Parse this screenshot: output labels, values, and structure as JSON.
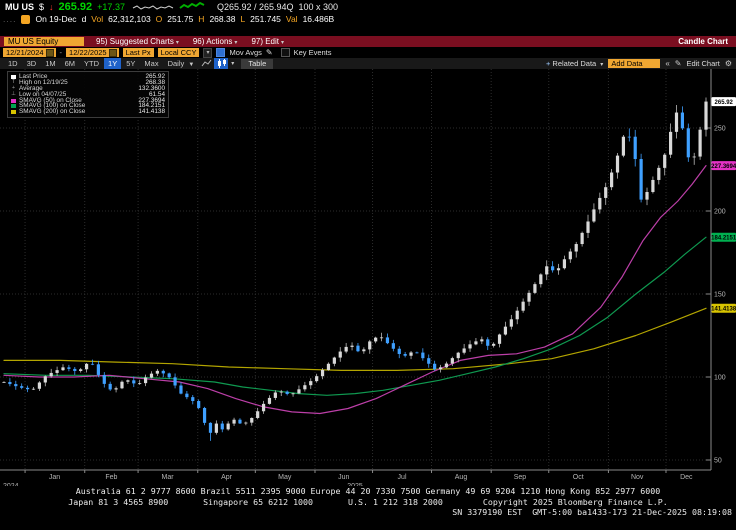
{
  "quote_bar": {
    "ticker": "MU US",
    "currency": "$",
    "arrow": "↓",
    "last": "265.92",
    "change": "+17.37",
    "bid_ask": "Q265.92 / 265.94Q",
    "lot": "100 x 300"
  },
  "ohlc_bar": {
    "prefix": "....",
    "as_of": "On 19-Dec",
    "delay": "d",
    "fields": [
      {
        "label": "Vol",
        "value": "62,312,103"
      },
      {
        "label": "O",
        "value": "251.75"
      },
      {
        "label": "H",
        "value": "268.38"
      },
      {
        "label": "L",
        "value": "251.745"
      },
      {
        "label": "Val",
        "value": "16.486B"
      }
    ]
  },
  "menu_bar": {
    "ticker_box": "MU US Equity",
    "items": [
      "95) Suggested Charts",
      "96) Actions",
      "97) Edit"
    ],
    "right_label": "Candle Chart"
  },
  "settings_bar": {
    "date_from": "12/21/2024",
    "date_sep": "-",
    "date_to": "12/22/2025",
    "price_field": "Last Px",
    "currency_field": "Local CCY",
    "mov_avgs": {
      "checked": true,
      "label": "Mov Avgs"
    },
    "key_events": {
      "checked": false,
      "label": "Key Events"
    }
  },
  "toolbar": {
    "periods": [
      "1D",
      "3D",
      "1M",
      "6M",
      "YTD",
      "1Y",
      "5Y",
      "Max"
    ],
    "active_period": "1Y",
    "frequency": "Daily",
    "table_label": "Table",
    "related_data_label": "Related Data",
    "add_data_label": "Add Data",
    "edit_chart_label": "Edit Chart"
  },
  "legend": {
    "rows": [
      {
        "swatch": "#ffffff",
        "label": "Last Price",
        "value": "265.92"
      },
      {
        "marker": "T",
        "label": "High on 12/19/25",
        "value": "268.38"
      },
      {
        "marker": "+",
        "label": "Average",
        "value": "132.3600"
      },
      {
        "marker": "⊥",
        "label": "Low on 04/07/25",
        "value": "61.54"
      },
      {
        "swatch": "#e332c4",
        "label": "SMAVG (50) on Close",
        "value": "227.3694"
      },
      {
        "swatch": "#00a550",
        "label": "SMAVG (100) on Close",
        "value": "184.2151"
      },
      {
        "swatch": "#d8c400",
        "label": "SMAVG (200) on Close",
        "value": "141.4138"
      }
    ]
  },
  "chart_data": {
    "type": "candlestick",
    "x_range": [
      "12/21/2024",
      "12/22/2025"
    ],
    "y_ticks": [
      50,
      100,
      150,
      200,
      250
    ],
    "month_labels": [
      "Jan",
      "Feb",
      "Mar",
      "Apr",
      "May",
      "Jun",
      "Jul",
      "Aug",
      "Sep",
      "Oct",
      "Nov",
      "Dec"
    ],
    "year_labels": [
      "2024",
      "2025"
    ],
    "last_price": 265.92,
    "high": {
      "date": "12/19/25",
      "value": 268.38
    },
    "low": {
      "date": "04/07/25",
      "value": 61.54
    },
    "average": 132.36,
    "close_path": [
      [
        0.0,
        97
      ],
      [
        0.02,
        94
      ],
      [
        0.04,
        92
      ],
      [
        0.06,
        101
      ],
      [
        0.085,
        106
      ],
      [
        0.105,
        103
      ],
      [
        0.123,
        110
      ],
      [
        0.14,
        97
      ],
      [
        0.155,
        91
      ],
      [
        0.172,
        99
      ],
      [
        0.19,
        95
      ],
      [
        0.205,
        101
      ],
      [
        0.22,
        104
      ],
      [
        0.235,
        100
      ],
      [
        0.252,
        90
      ],
      [
        0.268,
        86
      ],
      [
        0.28,
        80
      ],
      [
        0.292,
        64
      ],
      [
        0.3,
        73
      ],
      [
        0.312,
        68
      ],
      [
        0.325,
        75
      ],
      [
        0.34,
        71
      ],
      [
        0.355,
        76
      ],
      [
        0.372,
        85
      ],
      [
        0.39,
        92
      ],
      [
        0.408,
        89
      ],
      [
        0.425,
        94
      ],
      [
        0.442,
        99
      ],
      [
        0.46,
        107
      ],
      [
        0.478,
        115
      ],
      [
        0.493,
        120
      ],
      [
        0.508,
        114
      ],
      [
        0.522,
        122
      ],
      [
        0.535,
        125
      ],
      [
        0.552,
        118
      ],
      [
        0.568,
        112
      ],
      [
        0.585,
        116
      ],
      [
        0.6,
        110
      ],
      [
        0.615,
        104
      ],
      [
        0.63,
        108
      ],
      [
        0.648,
        115
      ],
      [
        0.665,
        120
      ],
      [
        0.68,
        123
      ],
      [
        0.693,
        117
      ],
      [
        0.708,
        127
      ],
      [
        0.725,
        136
      ],
      [
        0.742,
        147
      ],
      [
        0.758,
        157
      ],
      [
        0.772,
        167
      ],
      [
        0.786,
        163
      ],
      [
        0.8,
        172
      ],
      [
        0.815,
        180
      ],
      [
        0.83,
        192
      ],
      [
        0.845,
        205
      ],
      [
        0.858,
        215
      ],
      [
        0.87,
        228
      ],
      [
        0.884,
        247
      ],
      [
        0.896,
        243
      ],
      [
        0.906,
        206
      ],
      [
        0.917,
        212
      ],
      [
        0.928,
        222
      ],
      [
        0.94,
        232
      ],
      [
        0.951,
        250
      ],
      [
        0.96,
        262
      ],
      [
        0.971,
        241
      ],
      [
        0.978,
        225
      ],
      [
        0.986,
        237
      ],
      [
        0.993,
        252
      ],
      [
        1.0,
        265.92
      ]
    ],
    "series": [
      {
        "name": "SMAVG (200) on Close",
        "color": "#b3a500",
        "badge": "141.4138",
        "points": [
          [
            0,
            110
          ],
          [
            0.08,
            110
          ],
          [
            0.16,
            109
          ],
          [
            0.24,
            108
          ],
          [
            0.32,
            106
          ],
          [
            0.4,
            105
          ],
          [
            0.48,
            104
          ],
          [
            0.56,
            104
          ],
          [
            0.64,
            105
          ],
          [
            0.72,
            108
          ],
          [
            0.78,
            111
          ],
          [
            0.84,
            117
          ],
          [
            0.9,
            125
          ],
          [
            0.95,
            133
          ],
          [
            1,
            141.41
          ]
        ]
      },
      {
        "name": "SMAVG (100) on Close",
        "color": "#0f9950",
        "badge": "184.2151",
        "points": [
          [
            0,
            102
          ],
          [
            0.06,
            101
          ],
          [
            0.12,
            101
          ],
          [
            0.18,
            100
          ],
          [
            0.24,
            99
          ],
          [
            0.3,
            97
          ],
          [
            0.34,
            94
          ],
          [
            0.38,
            92
          ],
          [
            0.42,
            90
          ],
          [
            0.46,
            89
          ],
          [
            0.5,
            90
          ],
          [
            0.54,
            92
          ],
          [
            0.58,
            95
          ],
          [
            0.62,
            98
          ],
          [
            0.66,
            102
          ],
          [
            0.7,
            106
          ],
          [
            0.74,
            111
          ],
          [
            0.78,
            117
          ],
          [
            0.82,
            125
          ],
          [
            0.86,
            136
          ],
          [
            0.9,
            150
          ],
          [
            0.94,
            163
          ],
          [
            0.97,
            174
          ],
          [
            1,
            184.22
          ]
        ]
      },
      {
        "name": "SMAVG (50) on Close",
        "color": "#bc3fa8",
        "badge": "227.3694",
        "points": [
          [
            0,
            101
          ],
          [
            0.05,
            100
          ],
          [
            0.1,
            100
          ],
          [
            0.15,
            101
          ],
          [
            0.2,
            99
          ],
          [
            0.25,
            97
          ],
          [
            0.29,
            93
          ],
          [
            0.33,
            87
          ],
          [
            0.37,
            82
          ],
          [
            0.41,
            79
          ],
          [
            0.45,
            78
          ],
          [
            0.49,
            81
          ],
          [
            0.53,
            87
          ],
          [
            0.57,
            95
          ],
          [
            0.61,
            103
          ],
          [
            0.65,
            110
          ],
          [
            0.69,
            113
          ],
          [
            0.73,
            114
          ],
          [
            0.77,
            118
          ],
          [
            0.81,
            126
          ],
          [
            0.85,
            142
          ],
          [
            0.88,
            160
          ],
          [
            0.91,
            182
          ],
          [
            0.935,
            196
          ],
          [
            0.96,
            206
          ],
          [
            0.98,
            216
          ],
          [
            1,
            227.37
          ]
        ]
      }
    ],
    "axis_badges": [
      {
        "value": "265.92",
        "price": 265.92,
        "bg": "#ffffff"
      },
      {
        "value": "227.3694",
        "price": 227.3694,
        "bg": "#e332c4"
      },
      {
        "value": "184.2151",
        "price": 184.2151,
        "bg": "#00b050"
      },
      {
        "value": "141.4138",
        "price": 141.4138,
        "bg": "#d8c400"
      }
    ],
    "colors": {
      "up": "#d9d9d9",
      "down": "#3fa0ff",
      "grid": "#2c2c2c",
      "axis": "#8a8a8a"
    }
  },
  "footer": {
    "line1": "Australia 61 2 9777 8600 Brazil 5511 2395 9000 Europe 44 20 7330 7500 Germany 49 69 9204 1210 Hong Kong 852 2977 6000",
    "line2": "Japan 81 3 4565 8900       Singapore 65 6212 1000       U.S. 1 212 318 2000        Copyright 2025 Bloomberg Finance L.P.",
    "line3": "SN 3379190 EST  GMT-5:00 ba1433-173 21-Dec-2025 08:19:08"
  }
}
